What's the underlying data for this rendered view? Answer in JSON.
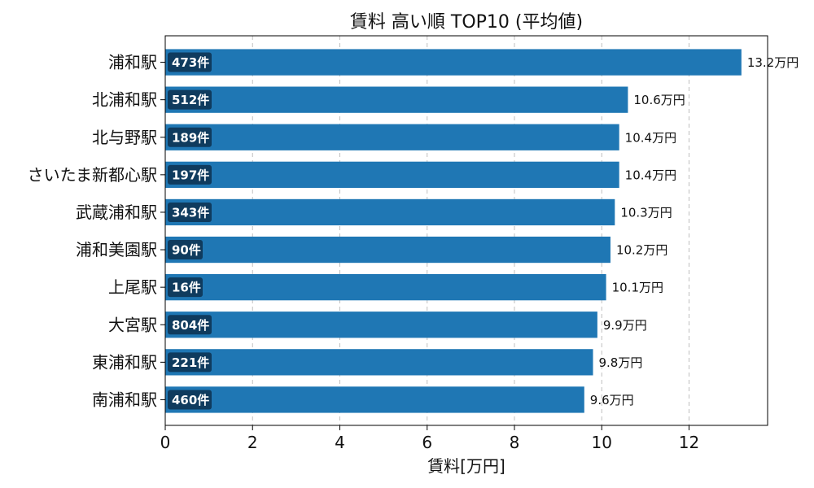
{
  "chart_data": {
    "type": "bar",
    "orientation": "horizontal",
    "title": "賃料 高い順 TOP10 (平均値)",
    "xlabel": "賃料[万円]",
    "ylabel": "",
    "xlim": [
      0,
      13.8
    ],
    "xticks": [
      "0",
      "2",
      "4",
      "6",
      "8",
      "10",
      "12"
    ],
    "grid": "x-dashed",
    "bar_color": "#1f77b4",
    "badge_color": "#0f3b5e",
    "categories": [
      "浦和駅",
      "北浦和駅",
      "北与野駅",
      "さいたま新都心駅",
      "武蔵浦和駅",
      "浦和美園駅",
      "上尾駅",
      "大宮駅",
      "東浦和駅",
      "南浦和駅"
    ],
    "values": [
      13.2,
      10.6,
      10.4,
      10.4,
      10.3,
      10.2,
      10.1,
      9.9,
      9.8,
      9.6
    ],
    "value_labels": [
      "13.2万円",
      "10.6万円",
      "10.4万円",
      "10.4万円",
      "10.3万円",
      "10.2万円",
      "10.1万円",
      "9.9万円",
      "9.8万円",
      "9.6万円"
    ],
    "count_labels": [
      "473件",
      "512件",
      "189件",
      "197件",
      "343件",
      "90件",
      "16件",
      "804件",
      "221件",
      "460件"
    ]
  }
}
